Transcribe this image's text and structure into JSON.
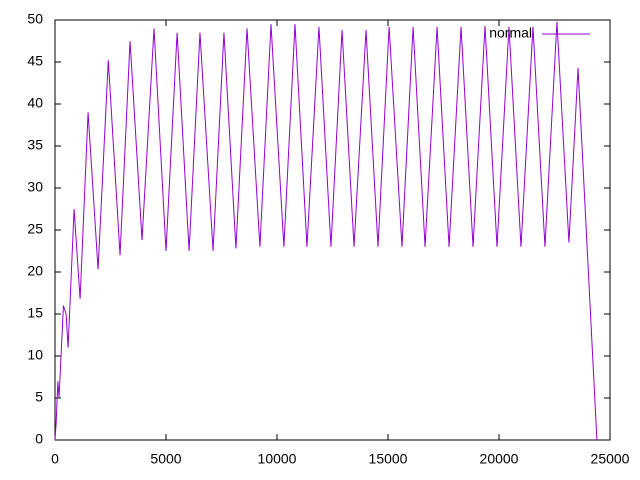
{
  "chart_data": {
    "type": "line",
    "x": [
      0,
      50,
      130,
      180,
      380,
      500,
      590,
      860,
      1130,
      1490,
      1940,
      2400,
      2930,
      3380,
      3920,
      4460,
      5000,
      5500,
      6040,
      6530,
      7120,
      7610,
      8150,
      8650,
      9230,
      9730,
      10310,
      10810,
      11350,
      11890,
      12430,
      12930,
      13470,
      14010,
      14550,
      15050,
      15630,
      16130,
      16670,
      17210,
      17750,
      18290,
      18830,
      19370,
      19910,
      20450,
      20990,
      21530,
      22070,
      22610,
      23150,
      23560,
      24410
    ],
    "series": [
      {
        "name": "normal",
        "color": "#9400d3",
        "values": [
          0,
          2,
          7,
          5,
          16,
          15,
          11,
          27.5,
          16.8,
          39,
          20.3,
          45.2,
          22,
          47.5,
          23.8,
          49,
          22.5,
          48.5,
          22.5,
          48.5,
          22.5,
          48.5,
          22.8,
          49,
          23,
          49.5,
          23,
          49.5,
          23,
          49.2,
          23,
          48.8,
          23,
          48.8,
          23,
          49.2,
          23,
          49.2,
          23,
          49.2,
          23,
          49.2,
          23,
          49.3,
          23,
          49.2,
          23,
          49.2,
          23,
          49.8,
          23.5,
          44.3,
          0
        ]
      }
    ],
    "xlim": [
      0,
      25000
    ],
    "xticks": [
      0,
      5000,
      10000,
      15000,
      20000,
      25000
    ],
    "ylim": [
      0,
      50
    ],
    "yticks": [
      0,
      5,
      10,
      15,
      20,
      25,
      30,
      35,
      40,
      45,
      50
    ],
    "legend": "top-right"
  }
}
